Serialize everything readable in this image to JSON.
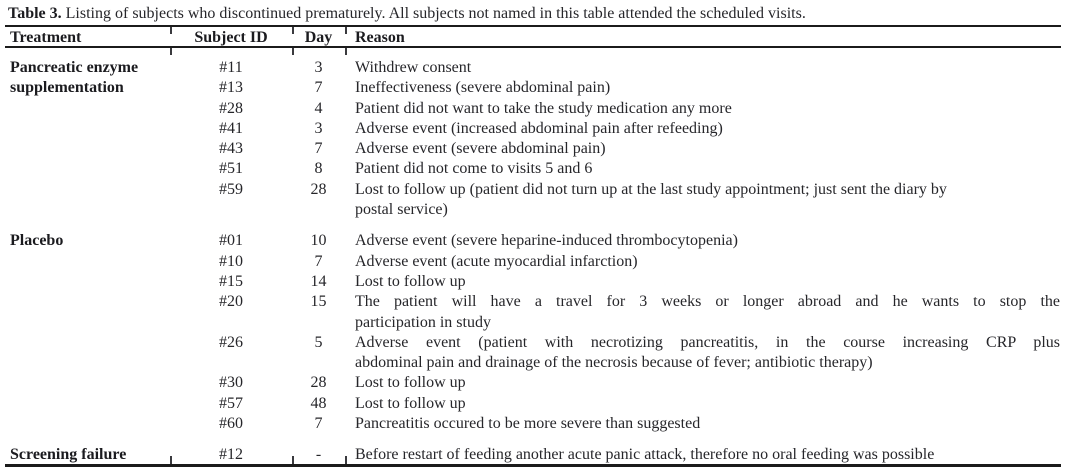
{
  "table": {
    "caption": {
      "label": "Table 3.",
      "text": "Listing of subjects who discontinued prematurely. All subjects not named in this table attended the scheduled visits."
    },
    "columns": [
      "Treatment",
      "Subject ID",
      "Day",
      "Reason"
    ],
    "sections": [
      {
        "treatment": "Pancreatic enzyme supplementation",
        "rows": [
          {
            "subject_id": "#11",
            "day": "3",
            "reason_lines": [
              "Withdrew consent"
            ]
          },
          {
            "subject_id": "#13",
            "day": "7",
            "reason_lines": [
              "Ineffectiveness (severe abdominal pain)"
            ]
          },
          {
            "subject_id": "#28",
            "day": "4",
            "reason_lines": [
              "Patient did not want to take the study medication any more"
            ]
          },
          {
            "subject_id": "#41",
            "day": "3",
            "reason_lines": [
              "Adverse event (increased abdominal pain after refeeding)"
            ]
          },
          {
            "subject_id": "#43",
            "day": "7",
            "reason_lines": [
              "Adverse event (severe abdominal pain)"
            ]
          },
          {
            "subject_id": "#51",
            "day": "8",
            "reason_lines": [
              "Patient did not come to visits 5 and 6"
            ]
          },
          {
            "subject_id": "#59",
            "day": "28",
            "reason_lines": [
              "Lost to follow up (patient did not turn up at the last study appointment; just sent the diary by",
              "postal service)"
            ]
          }
        ]
      },
      {
        "treatment": "Placebo",
        "rows": [
          {
            "subject_id": "#01",
            "day": "10",
            "reason_lines": [
              "Adverse event (severe heparine-induced thrombocytopenia)"
            ]
          },
          {
            "subject_id": "#10",
            "day": "7",
            "reason_lines": [
              "Adverse event (acute myocardial infarction)"
            ]
          },
          {
            "subject_id": "#15",
            "day": "14",
            "reason_lines": [
              "Lost to follow up"
            ]
          },
          {
            "subject_id": "#20",
            "day": "15",
            "justified": true,
            "reason_lines": [
              "The patient will have a travel for 3 weeks or longer abroad and he wants to stop the",
              "participation in study"
            ]
          },
          {
            "subject_id": "#26",
            "day": "5",
            "justified": true,
            "reason_lines": [
              "Adverse event (patient with necrotizing pancreatitis, in the course increasing CRP plus",
              "abdominal pain and drainage of the necrosis because of fever; antibiotic therapy)"
            ]
          },
          {
            "subject_id": "#30",
            "day": "28",
            "reason_lines": [
              "Lost to follow up"
            ]
          },
          {
            "subject_id": "#57",
            "day": "48",
            "reason_lines": [
              "Lost to follow up"
            ]
          },
          {
            "subject_id": "#60",
            "day": "7",
            "reason_lines": [
              "Pancreatitis occured to be more severe than suggested"
            ]
          }
        ]
      },
      {
        "treatment": "Screening failure",
        "rows": [
          {
            "subject_id": "#12",
            "day": "-",
            "reason_lines": [
              "Before restart of feeding another acute panic attack, therefore no oral feeding was possible"
            ]
          }
        ]
      }
    ]
  },
  "colors": {
    "background": "#ffffff",
    "text": "#26262a",
    "rule": "#1b1b1b"
  }
}
